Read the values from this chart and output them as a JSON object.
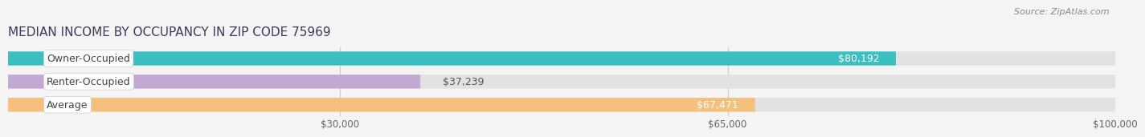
{
  "title": "MEDIAN INCOME BY OCCUPANCY IN ZIP CODE 75969",
  "source": "Source: ZipAtlas.com",
  "categories": [
    "Owner-Occupied",
    "Renter-Occupied",
    "Average"
  ],
  "values": [
    80192,
    37239,
    67471
  ],
  "bar_colors": [
    "#3bbfc0",
    "#c4a8d4",
    "#f5bf7e"
  ],
  "bar_labels": [
    "$80,192",
    "$37,239",
    "$67,471"
  ],
  "xlim": [
    0,
    100000
  ],
  "xticks": [
    30000,
    65000,
    100000
  ],
  "xtick_labels": [
    "$30,000",
    "$65,000",
    "$100,000"
  ],
  "background_color": "#f4f4f4",
  "bar_bg_color": "#e2e2e2",
  "title_fontsize": 11,
  "label_fontsize": 9,
  "tick_fontsize": 8.5,
  "source_fontsize": 8,
  "bar_height": 0.6
}
